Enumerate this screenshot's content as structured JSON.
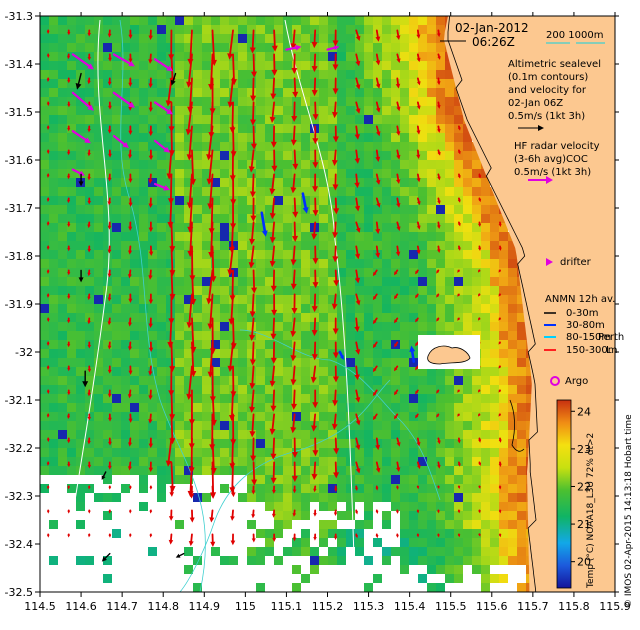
{
  "header": {
    "date": "02-Jan-2012",
    "time": "06:26Z",
    "depth_contours": "200  1000m"
  },
  "legend": {
    "altimetric_lines": [
      "Altimetric sealevel",
      "(0.1m contours)",
      "and velocity for",
      "02-Jan 06Z",
      "0.5m/s (1kt 3h)"
    ],
    "hf_lines": [
      "HF radar velocity",
      "(3-6h avg)",
      "0.5m/s (1kt 3h)"
    ],
    "hf_overlap": "COC",
    "drifter": "drifter",
    "anmn_title": "ANMN 12h av.",
    "anmn_items": [
      "0-30m",
      "30-80m",
      "80-150m",
      "150-300m"
    ],
    "anmn_overlap": [
      "Perth",
      "L"
    ],
    "argo": "Argo"
  },
  "colorbar": {
    "label": "Temp (°C) NOAA18_L3U 72% dt>2",
    "ticks": [
      "24",
      "23",
      "22",
      "21",
      "20"
    ],
    "min": 19.3,
    "max": 24.3
  },
  "credit": "© IMOS 02-Apr-2015 14:13:18 Hobart time",
  "chart_data": {
    "type": "heatmap",
    "xlabel": "",
    "ylabel": "",
    "x_ticks": [
      "114.5",
      "114.6",
      "114.7",
      "114.8",
      "114.9",
      "115",
      "115.1",
      "115.2",
      "115.3",
      "115.4",
      "115.5",
      "115.6",
      "115.7",
      "115.8",
      "115.9"
    ],
    "y_ticks": [
      "-31.3",
      "-31.4",
      "-31.5",
      "-31.6",
      "-31.7",
      "-31.8",
      "-31.9",
      "-32",
      "-32.1",
      "-32.2",
      "-32.3",
      "-32.4",
      "-32.5"
    ],
    "xlim": [
      114.5,
      115.9
    ],
    "ylim": [
      -32.5,
      -31.3
    ],
    "colors": {
      "land": "#fcc890",
      "cold": "#14149b",
      "warm": "#d84010",
      "arrow_altimetry": "#e00000",
      "arrow_hf": "#e000e0",
      "anmn_0_30": "#000000",
      "anmn_30_80": "#0030ff",
      "anmn_80_150": "#00d0ff",
      "anmn_150_300": "#ff2020",
      "contour_depth": "#40d0d0",
      "contour_sealevel": "#ffffff"
    },
    "magenta_arrows": [
      {
        "lon": 114.58,
        "lat": -31.38,
        "u": 0.35,
        "v": -0.25
      },
      {
        "lon": 114.68,
        "lat": -31.38,
        "u": 0.35,
        "v": -0.2
      },
      {
        "lon": 114.78,
        "lat": -31.39,
        "u": 0.3,
        "v": -0.2
      },
      {
        "lon": 114.58,
        "lat": -31.46,
        "u": 0.35,
        "v": -0.3
      },
      {
        "lon": 114.68,
        "lat": -31.46,
        "u": 0.35,
        "v": -0.25
      },
      {
        "lon": 114.78,
        "lat": -31.48,
        "u": 0.3,
        "v": -0.2
      },
      {
        "lon": 114.58,
        "lat": -31.54,
        "u": 0.3,
        "v": -0.2
      },
      {
        "lon": 114.68,
        "lat": -31.55,
        "u": 0.25,
        "v": -0.2
      },
      {
        "lon": 114.78,
        "lat": -31.56,
        "u": 0.25,
        "v": -0.2
      },
      {
        "lon": 114.58,
        "lat": -31.62,
        "u": 0.2,
        "v": -0.1
      },
      {
        "lon": 114.78,
        "lat": -31.65,
        "u": 0.25,
        "v": -0.1
      },
      {
        "lon": 115.1,
        "lat": -31.37,
        "u": 0.25,
        "v": 0.05
      },
      {
        "lon": 115.2,
        "lat": -31.37,
        "u": 0.2,
        "v": 0.05
      }
    ],
    "anmn_arrows": [
      {
        "lon": 114.6,
        "lat": -31.42,
        "u": -0.05,
        "v": -0.2,
        "band": "0-30m"
      },
      {
        "lon": 114.6,
        "lat": -31.63,
        "u": 0.0,
        "v": -0.15,
        "band": "0-30m"
      },
      {
        "lon": 114.6,
        "lat": -31.83,
        "u": 0.0,
        "v": -0.15,
        "band": "0-30m"
      },
      {
        "lon": 114.61,
        "lat": -32.04,
        "u": 0.0,
        "v": -0.2,
        "band": "0-30m"
      },
      {
        "lon": 114.66,
        "lat": -32.25,
        "u": -0.05,
        "v": -0.1,
        "band": "0-30m"
      },
      {
        "lon": 114.67,
        "lat": -32.42,
        "u": -0.1,
        "v": -0.1,
        "band": "0-30m"
      },
      {
        "lon": 114.85,
        "lat": -32.42,
        "u": -0.1,
        "v": -0.05,
        "band": "0-30m"
      },
      {
        "lon": 114.83,
        "lat": -31.42,
        "u": -0.05,
        "v": -0.15,
        "band": "0-30m"
      },
      {
        "lon": 115.04,
        "lat": -31.71,
        "u": 0.05,
        "v": -0.3,
        "band": "30-80m"
      },
      {
        "lon": 115.14,
        "lat": -31.67,
        "u": 0.05,
        "v": -0.25,
        "band": "30-80m"
      },
      {
        "lon": 115.41,
        "lat": -32.02,
        "u": -0.03,
        "v": 0.2,
        "band": "30-80m"
      },
      {
        "lon": 115.23,
        "lat": -32.0,
        "u": 0.05,
        "v": -0.1,
        "band": "30-80m"
      }
    ]
  }
}
